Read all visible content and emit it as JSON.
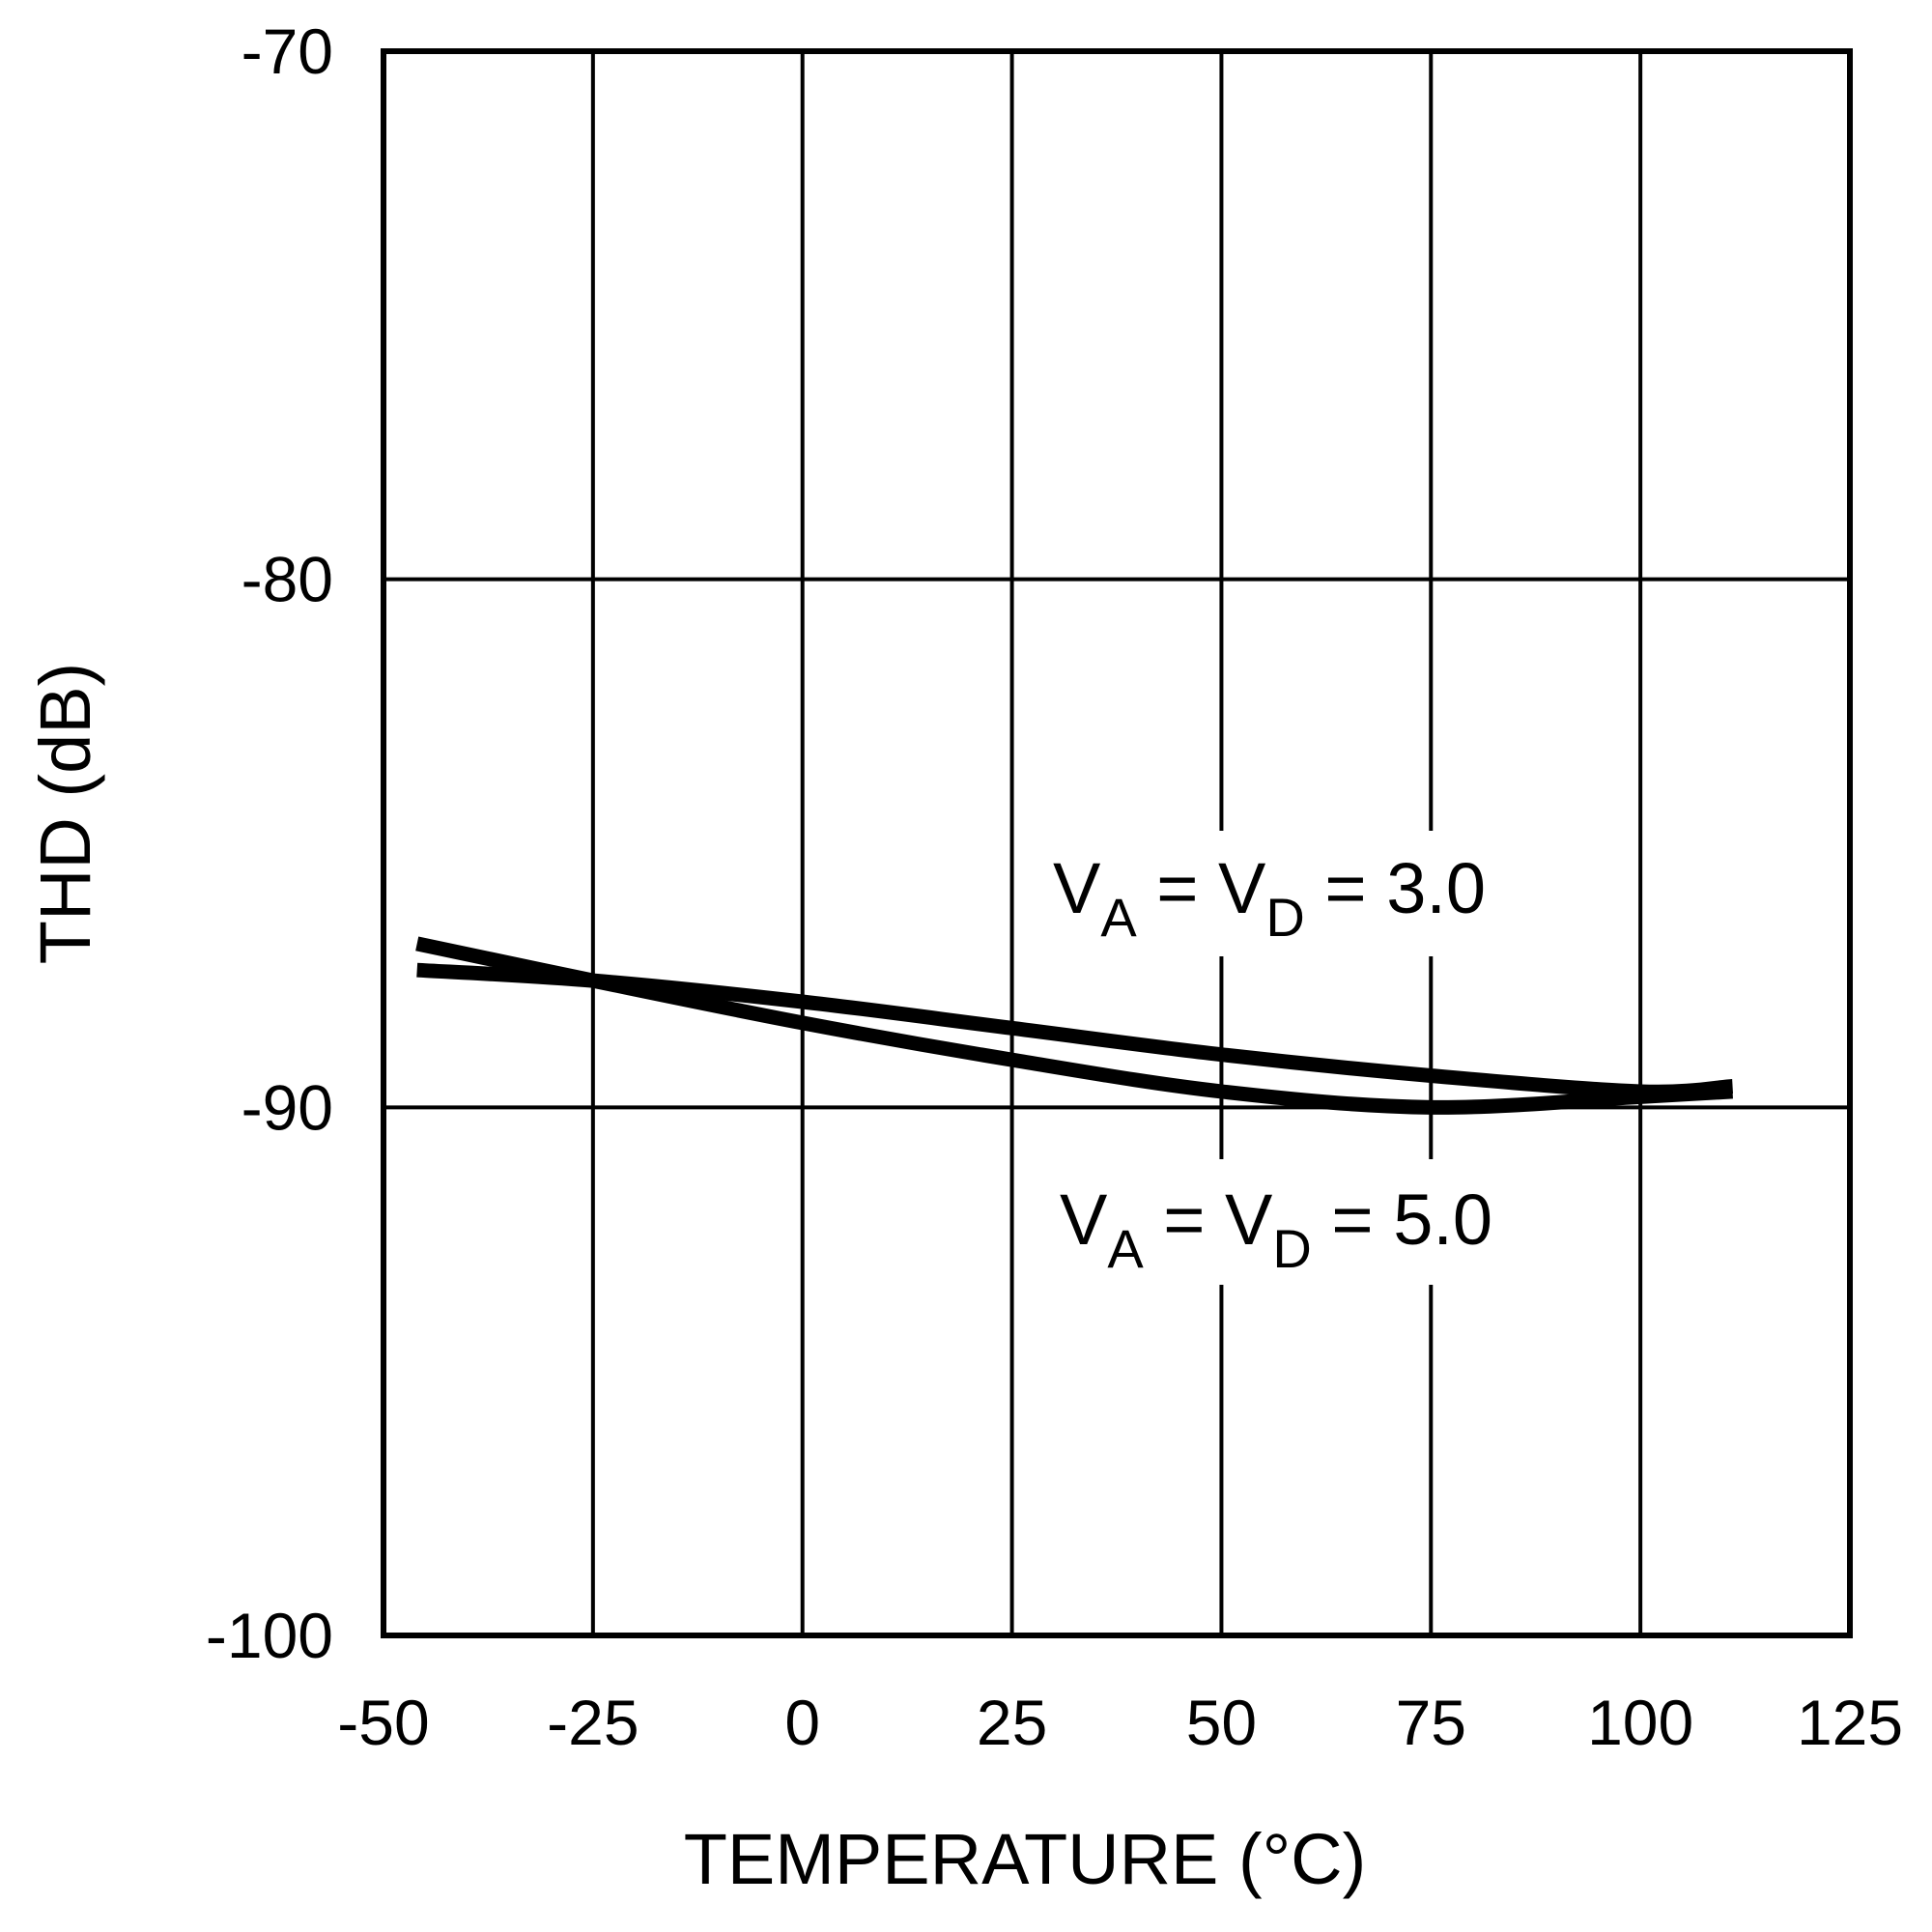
{
  "chart_data": {
    "type": "line",
    "xlabel": "TEMPERATURE (°C)",
    "ylabel": "THD (dB)",
    "xlim": [
      -50,
      125
    ],
    "ylim": [
      -100,
      -70
    ],
    "xticks": [
      -50,
      -25,
      0,
      25,
      50,
      75,
      100,
      125
    ],
    "yticks": [
      -70,
      -80,
      -90,
      -100
    ],
    "xtick_labels": [
      "-50",
      "-25",
      "0",
      "25",
      "50",
      "75",
      "100",
      "125"
    ],
    "ytick_labels": [
      "-70",
      "-80",
      "-90",
      "-100"
    ],
    "grid": true,
    "series": [
      {
        "name": "VA = VD = 3.0",
        "x": [
          -46,
          -25,
          0,
          25,
          50,
          75,
          100,
          111
        ],
        "y": [
          -87.4,
          -87.6,
          -88.0,
          -88.5,
          -89.0,
          -89.4,
          -89.7,
          -89.6
        ]
      },
      {
        "name": "VA = VD = 5.0",
        "x": [
          -46,
          -25,
          0,
          25,
          50,
          75,
          100,
          111
        ],
        "y": [
          -86.9,
          -87.6,
          -88.4,
          -89.1,
          -89.7,
          -90.0,
          -89.8,
          -89.7
        ]
      }
    ],
    "annotations": [
      {
        "series": 0,
        "parts": [
          "V",
          "A",
          " = V",
          "D",
          " = 3.0"
        ]
      },
      {
        "series": 1,
        "parts": [
          "V",
          "A",
          " = V",
          "D",
          " = 5.0"
        ]
      }
    ]
  }
}
